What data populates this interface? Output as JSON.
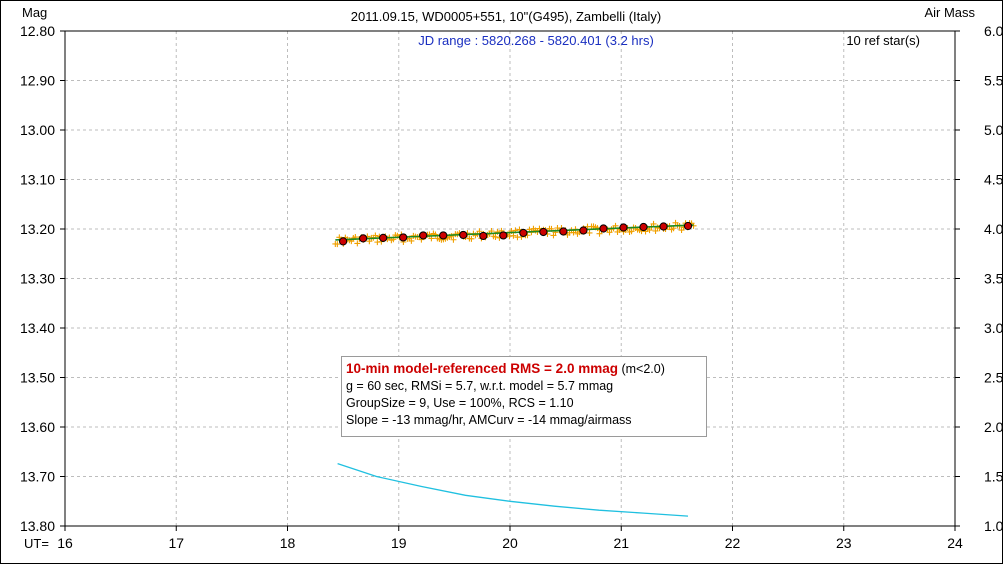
{
  "chart_data": {
    "type": "scatter",
    "title": "2011.09.15, WD0005+551, 10\"(G495), Zambelli (Italy)",
    "subtitle": "JD range : 5820.268 - 5820.401 (3.2 hrs)",
    "ref_stars": "10 ref star(s)",
    "ylabel_left": "Mag",
    "ylabel_right": "Air Mass",
    "xlabel": "UT=",
    "xlim": [
      16,
      24
    ],
    "ylim_left": [
      12.8,
      13.8
    ],
    "ylim_right": [
      1.0,
      6.0
    ],
    "y_left_inverted": true,
    "grid": true,
    "x_ticks": [
      "16",
      "17",
      "18",
      "19",
      "20",
      "21",
      "22",
      "23",
      "24"
    ],
    "y_left_ticks": [
      "12.80",
      "12.90",
      "13.00",
      "13.10",
      "13.20",
      "13.30",
      "13.40",
      "13.50",
      "13.60",
      "13.70",
      "13.80"
    ],
    "y_right_ticks": [
      "6.0",
      "5.5",
      "5.0",
      "4.5",
      "4.0",
      "3.5",
      "3.0",
      "2.5",
      "2.0",
      "1.5",
      "1.0"
    ],
    "series": [
      {
        "kind": "individual-measurements",
        "marker": "plus",
        "color": "#f0a000",
        "x_range": [
          18.43,
          21.65
        ],
        "y_start": 13.224,
        "y_end": 13.194,
        "scatter_mag": 0.008,
        "count": 180
      },
      {
        "kind": "binned-averages",
        "marker": "circle",
        "color": "#cc0000",
        "x": [
          18.5,
          18.68,
          18.86,
          19.04,
          19.22,
          19.4,
          19.58,
          19.76,
          19.94,
          20.12,
          20.3,
          20.48,
          20.66,
          20.84,
          21.02,
          21.2,
          21.38,
          21.6
        ],
        "y": [
          13.225,
          13.219,
          13.218,
          13.217,
          13.213,
          13.213,
          13.212,
          13.214,
          13.213,
          13.208,
          13.206,
          13.205,
          13.203,
          13.199,
          13.197,
          13.196,
          13.195,
          13.194
        ]
      },
      {
        "kind": "model-fit",
        "marker": "line",
        "color": "#1f8a1f",
        "x": [
          18.43,
          21.65
        ],
        "y": [
          13.222,
          13.192
        ]
      },
      {
        "kind": "air-mass",
        "axis": "right",
        "marker": "line",
        "color": "#20c0e0",
        "x": [
          18.45,
          18.8,
          19.2,
          19.6,
          20.0,
          20.4,
          20.8,
          21.2,
          21.6
        ],
        "y": [
          1.63,
          1.5,
          1.4,
          1.31,
          1.25,
          1.2,
          1.16,
          1.13,
          1.1
        ]
      }
    ],
    "annotation": {
      "headline": "10-min model-referenced RMS = 2.0 mmag",
      "headline_note": "(m<2.0)",
      "lines": [
        "g = 60 sec, RMSi = 5.7, w.r.t. model = 5.7 mmag",
        "GroupSize = 9, Use = 100%, RCS = 1.10",
        "Slope = -13 mmag/hr, AMCurv = -14 mmag/airmass"
      ]
    }
  }
}
